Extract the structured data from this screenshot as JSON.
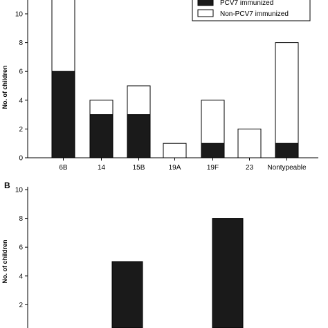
{
  "chart_data": [
    {
      "panel": "",
      "type": "bar",
      "stacked": true,
      "categories": [
        "6B",
        "14",
        "15B",
        "19A",
        "19F",
        "23",
        "Nontypeable"
      ],
      "series": [
        {
          "name": "PCV7 immunized",
          "color": "#1a1a1a",
          "values": [
            6,
            3,
            3,
            0,
            1,
            0,
            1
          ]
        },
        {
          "name": "Non-PCV7 immunized",
          "color": "#ffffff",
          "values": [
            6,
            1,
            2,
            1,
            3,
            2,
            7
          ]
        }
      ],
      "title": "",
      "xlabel": "",
      "ylabel": "No. of children",
      "ylim": [
        0,
        12
      ],
      "yticks": [
        "0",
        "2",
        "4",
        "6",
        "8",
        "10"
      ],
      "legend": "top-right",
      "grid": false
    },
    {
      "panel": "B",
      "type": "bar",
      "categories": [
        "",
        "",
        ""
      ],
      "series": [
        {
          "name": "",
          "color": "#1a1a1a",
          "values": [
            null,
            5,
            8
          ]
        }
      ],
      "title": "",
      "xlabel": "",
      "ylabel": "No. of children",
      "ylim": [
        0,
        10
      ],
      "yticks": [
        "2",
        "4",
        "6",
        "8",
        "10"
      ],
      "grid": false
    }
  ]
}
